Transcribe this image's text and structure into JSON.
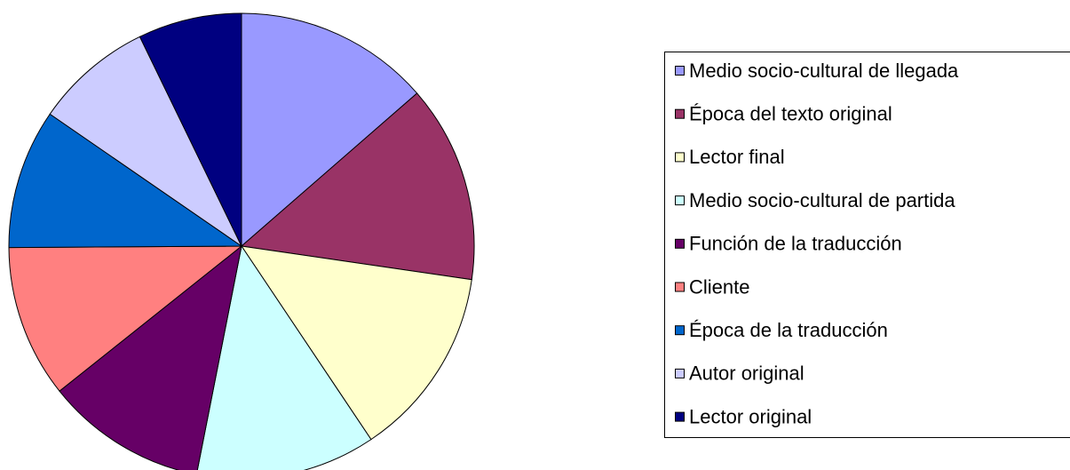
{
  "chart_data": {
    "type": "pie",
    "categories": [
      "Medio socio-cultural de llegada",
      "Época del texto original",
      "Lector final",
      "Medio socio-cultural de partida",
      "Función de la traducción",
      "Cliente",
      "Época de la traducción",
      "Autor original",
      "Lector original"
    ],
    "values": [
      13.6,
      13.7,
      13.3,
      12.5,
      11.2,
      10.6,
      9.7,
      8.2,
      7.2
    ],
    "colors": [
      "#9999ff",
      "#993366",
      "#ffffcc",
      "#ccffff",
      "#660066",
      "#ff8080",
      "#0066cc",
      "#ccccff",
      "#000080"
    ],
    "legend": "right"
  }
}
